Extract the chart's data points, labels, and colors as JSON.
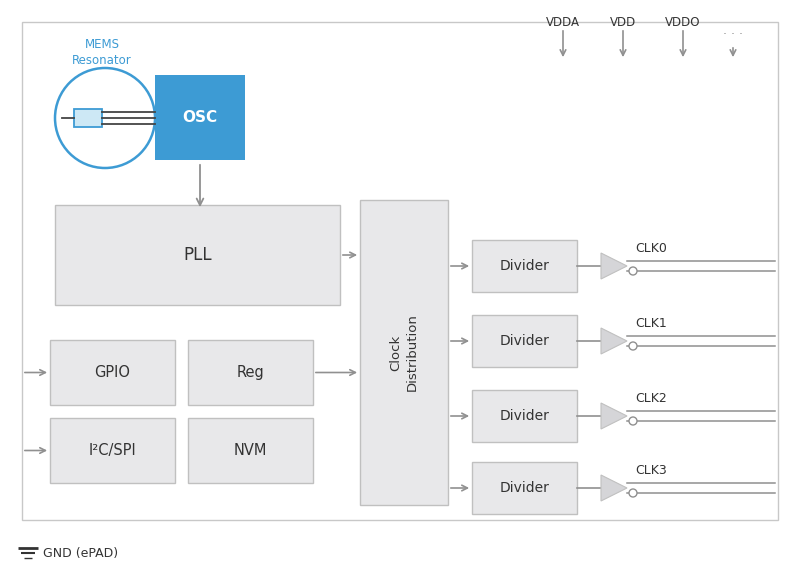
{
  "bg_color": "#ffffff",
  "border_color": "#c8c8c8",
  "box_fill_light": "#e8e8ea",
  "box_fill_blue": "#3d9bd4",
  "box_stroke": "#c0c0c0",
  "arrow_color": "#909090",
  "text_dark": "#333333",
  "text_blue": "#3d9bd4",
  "mems_circle_color": "#3d9bd4",
  "clk_labels": [
    "CLK0",
    "CLK1",
    "CLK2",
    "CLK3"
  ],
  "power_labels": [
    "VDDA",
    "VDD",
    "VDDO"
  ],
  "figsize": [
    8.0,
    5.78
  ],
  "dpi": 100
}
